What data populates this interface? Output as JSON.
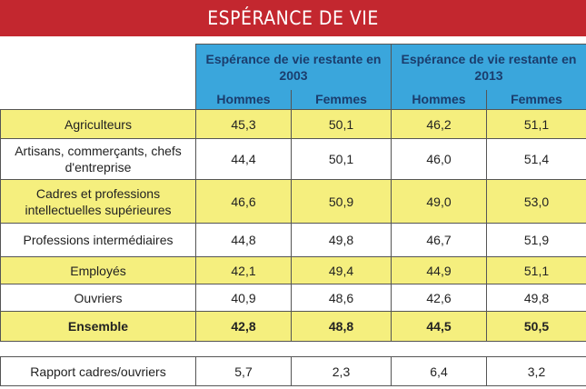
{
  "header": {
    "title": "ESPÉRANCE DE VIE"
  },
  "table": {
    "groups": [
      "Espérance de vie restante en 2003",
      "Espérance de vie restante en 2013"
    ],
    "subheaders": [
      "Hommes",
      "Femmes",
      "Hommes",
      "Femmes"
    ],
    "rows": [
      [
        "Agriculteurs",
        "45,3",
        "50,1",
        "46,2",
        "51,1"
      ],
      [
        "Artisans, commerçants, chefs d'entreprise",
        "44,4",
        "50,1",
        "46,0",
        "51,4"
      ],
      [
        "Cadres et professions intellectuelles supérieures",
        "46,6",
        "50,9",
        "49,0",
        "53,0"
      ],
      [
        "Professions intermédiaires",
        "44,8",
        "49,8",
        "46,7",
        "51,9"
      ],
      [
        "Employés",
        "42,1",
        "49,4",
        "44,9",
        "51,1"
      ],
      [
        "Ouvriers",
        "40,9",
        "48,6",
        "42,6",
        "49,8"
      ],
      [
        "Ensemble",
        "42,8",
        "48,8",
        "44,5",
        "50,5"
      ],
      [
        "Rapport cadres/ouvriers",
        "5,7",
        "2,3",
        "6,4",
        "3,2"
      ]
    ]
  }
}
